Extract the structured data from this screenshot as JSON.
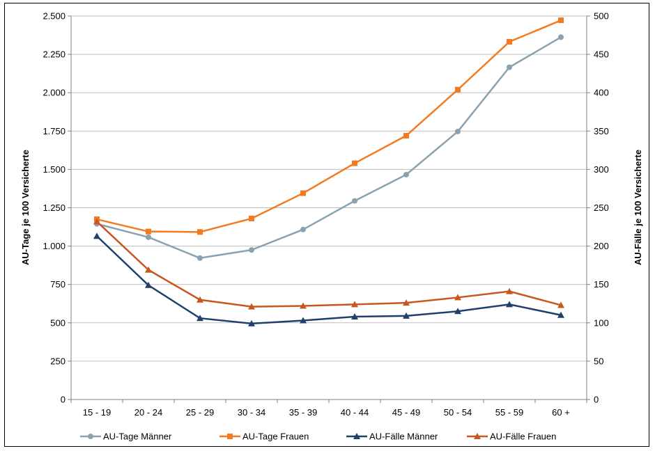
{
  "chart_data": {
    "type": "line",
    "title": "",
    "categories": [
      "15 - 19",
      "20 - 24",
      "25 - 29",
      "30 - 34",
      "35 - 39",
      "40 - 44",
      "45 - 49",
      "50 - 54",
      "55 - 59",
      "60 +"
    ],
    "y_left": {
      "label": "AU-Tage je 100 Versicherte",
      "range": [
        0,
        2500
      ],
      "ticks": [
        0,
        250,
        500,
        750,
        1000,
        1250,
        1500,
        1750,
        2000,
        2250,
        2500
      ],
      "tick_labels": [
        "0",
        "250",
        "500",
        "750",
        "1.000",
        "1.250",
        "1.500",
        "1.750",
        "2.000",
        "2.250",
        "2.500"
      ]
    },
    "y_right": {
      "label": "AU-Fälle je 100 Versicherte",
      "range": [
        0,
        500
      ],
      "ticks": [
        0,
        50,
        100,
        150,
        200,
        250,
        300,
        350,
        400,
        450,
        500
      ],
      "tick_labels": [
        "0",
        "50",
        "100",
        "150",
        "200",
        "250",
        "300",
        "350",
        "400",
        "450",
        "500"
      ]
    },
    "grid": true,
    "legend_position": "bottom",
    "series": [
      {
        "name": "AU-Tage Männer",
        "axis": "left",
        "marker": "circle",
        "color": "#8AA1B0",
        "values": [
          1145,
          1058,
          922,
          975,
          1108,
          1295,
          1466,
          1747,
          2166,
          2362
        ]
      },
      {
        "name": "AU-Tage Frauen",
        "axis": "left",
        "marker": "square",
        "color": "#F47A20",
        "values": [
          1175,
          1095,
          1092,
          1180,
          1345,
          1540,
          1720,
          2020,
          2332,
          2472
        ]
      },
      {
        "name": "AU-Fälle Männer",
        "axis": "right",
        "marker": "triangle",
        "color": "#1F3F6E",
        "values": [
          213,
          149,
          106,
          99,
          103,
          108,
          109,
          115,
          124,
          110
        ]
      },
      {
        "name": "AU-Fälle Frauen",
        "axis": "right",
        "marker": "triangle",
        "color": "#C8561E",
        "values": [
          232,
          169,
          130,
          121,
          122,
          124,
          126,
          133,
          141,
          123
        ]
      }
    ]
  }
}
